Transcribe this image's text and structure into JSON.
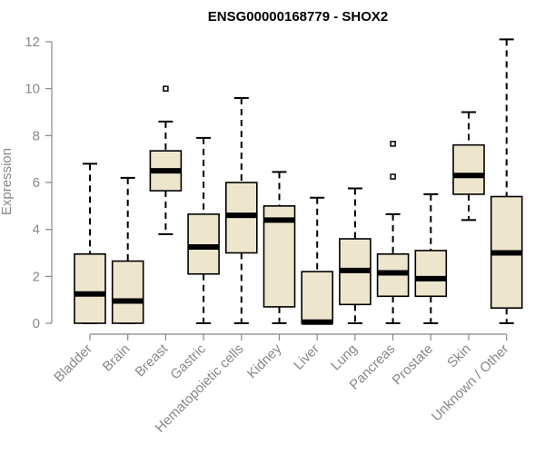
{
  "chart_data": {
    "type": "boxplot",
    "title": "ENSG00000168779 - SHOX2",
    "xlabel": "",
    "ylabel": "Expression",
    "ylim": [
      0,
      12
    ],
    "yticks": [
      0,
      2,
      4,
      6,
      8,
      10,
      12
    ],
    "categories": [
      "Bladder",
      "Brain",
      "Breast",
      "Gastric",
      "Hematopoietic cells",
      "Kidney",
      "Liver",
      "Lung",
      "Pancreas",
      "Prostate",
      "Skin",
      "Unknown / Other"
    ],
    "boxes": [
      {
        "name": "Bladder",
        "min": 0,
        "q1": 0,
        "median": 1.25,
        "q3": 2.95,
        "max": 6.8,
        "outliers": []
      },
      {
        "name": "Brain",
        "min": 0,
        "q1": 0,
        "median": 0.95,
        "q3": 2.65,
        "max": 6.2,
        "outliers": []
      },
      {
        "name": "Breast",
        "min": 3.8,
        "q1": 5.65,
        "median": 6.5,
        "q3": 7.35,
        "max": 8.6,
        "outliers": [
          10.0
        ]
      },
      {
        "name": "Gastric",
        "min": 0,
        "q1": 2.1,
        "median": 3.25,
        "q3": 4.65,
        "max": 7.9,
        "outliers": []
      },
      {
        "name": "Hematopoietic cells",
        "min": 0,
        "q1": 3.0,
        "median": 4.6,
        "q3": 6.0,
        "max": 9.6,
        "outliers": []
      },
      {
        "name": "Kidney",
        "min": 0,
        "q1": 0.7,
        "median": 4.4,
        "q3": 5.0,
        "max": 6.45,
        "outliers": []
      },
      {
        "name": "Liver",
        "min": 0,
        "q1": 0,
        "median": 0.05,
        "q3": 2.2,
        "max": 5.35,
        "outliers": []
      },
      {
        "name": "Lung",
        "min": 0,
        "q1": 0.8,
        "median": 2.25,
        "q3": 3.6,
        "max": 5.75,
        "outliers": []
      },
      {
        "name": "Pancreas",
        "min": 0,
        "q1": 1.15,
        "median": 2.15,
        "q3": 2.95,
        "max": 4.65,
        "outliers": [
          6.25,
          7.65
        ]
      },
      {
        "name": "Prostate",
        "min": 0,
        "q1": 1.15,
        "median": 1.9,
        "q3": 3.1,
        "max": 5.5,
        "outliers": []
      },
      {
        "name": "Skin",
        "min": 4.4,
        "q1": 5.5,
        "median": 6.3,
        "q3": 7.6,
        "max": 9.0,
        "outliers": []
      },
      {
        "name": "Unknown / Other",
        "min": 0,
        "q1": 0.65,
        "median": 3.0,
        "q3": 5.4,
        "max": 12.1,
        "outliers": []
      }
    ],
    "box_fill": "#ede6cd",
    "axis_color": "#888888"
  }
}
